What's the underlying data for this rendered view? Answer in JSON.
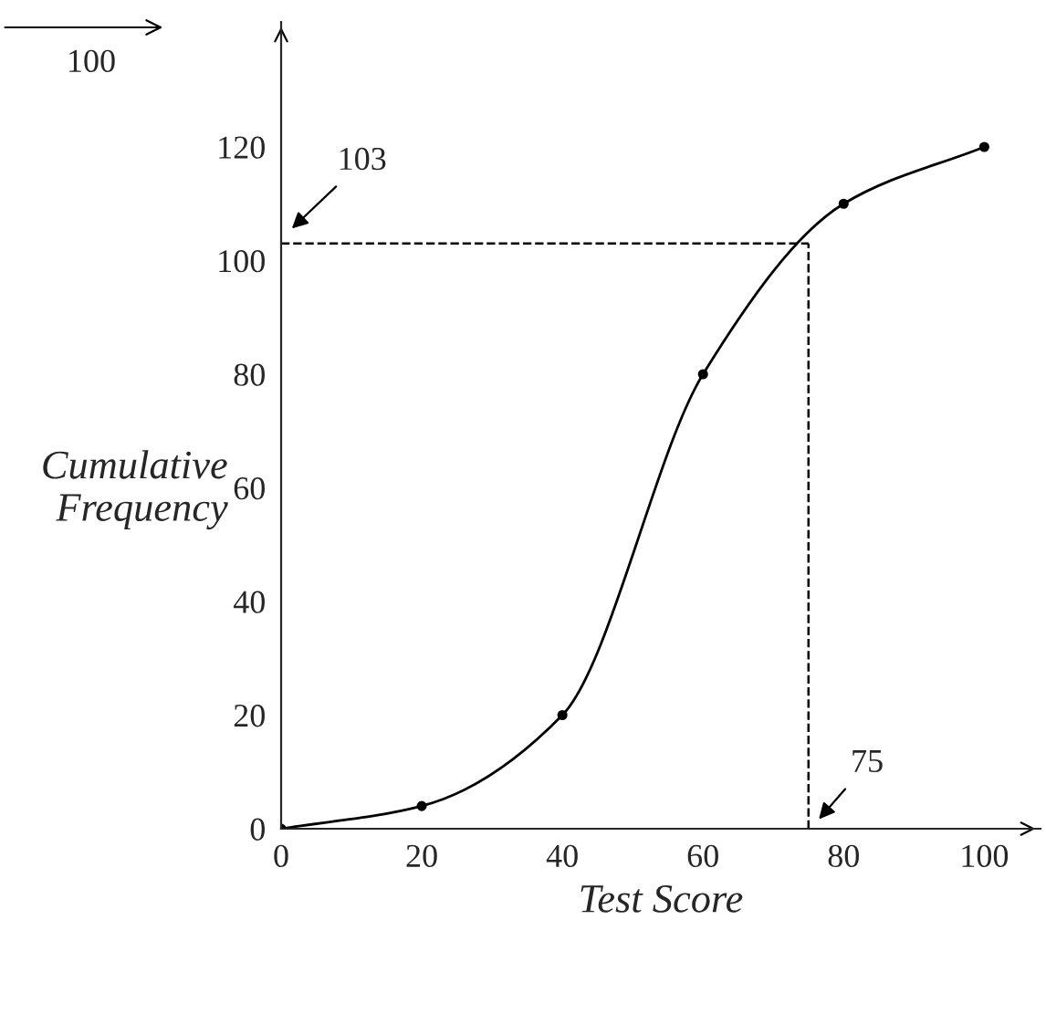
{
  "chart_data": {
    "type": "line",
    "xlabel": "Test Score",
    "ylabel": "Cumulative\nFrequency",
    "x": [
      0,
      20,
      40,
      60,
      80,
      100
    ],
    "series": [
      {
        "color": "#000000",
        "values": [
          0,
          4,
          20,
          80,
          110,
          120
        ]
      }
    ],
    "xlim": [
      0,
      108
    ],
    "ylim": [
      0,
      142
    ],
    "xticks": [
      0,
      20,
      40,
      60,
      80,
      100
    ],
    "yticks": [
      0,
      20,
      40,
      60,
      80,
      100,
      120
    ],
    "marker": "circle",
    "line_style": "solid",
    "grid": false,
    "legend": false,
    "ref_lines": [
      {
        "axis": "y",
        "value": 103,
        "label": "103",
        "line_style": "dashed",
        "color": "#000000"
      },
      {
        "axis": "x",
        "value": 75,
        "label": "75",
        "line_style": "dashed",
        "color": "#000000"
      }
    ],
    "annotations": [
      "100"
    ]
  }
}
